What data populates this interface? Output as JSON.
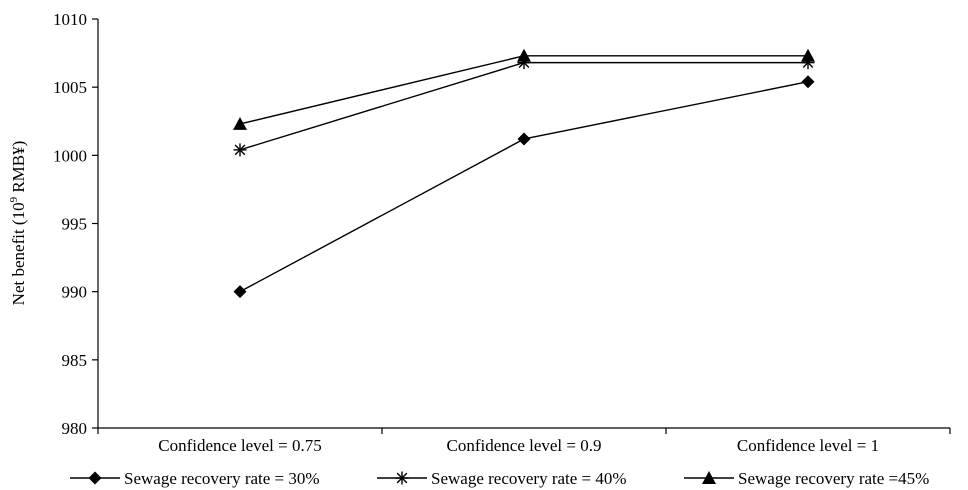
{
  "chart_data": {
    "type": "line",
    "ylabel": "Net benefit (10",
    "ylabel_sup": "9",
    "ylabel_tail": " RMB¥)",
    "ylim": [
      980,
      1010
    ],
    "yticks": [
      980,
      985,
      990,
      995,
      1000,
      1005,
      1010
    ],
    "categories": [
      "Confidence level = 0.75",
      "Confidence level = 0.9",
      "Confidence level = 1"
    ],
    "series": [
      {
        "name": "Sewage recovery rate = 30%",
        "marker": "diamond",
        "values": [
          990.0,
          1001.2,
          1005.4
        ]
      },
      {
        "name": "Sewage recovery rate = 40%",
        "marker": "star",
        "values": [
          1000.4,
          1006.8,
          1006.8
        ]
      },
      {
        "name": "Sewage recovery rate =45%",
        "marker": "triangle",
        "values": [
          1002.3,
          1007.3,
          1007.3
        ]
      }
    ],
    "grid": false,
    "legend_position": "bottom",
    "line_color": "#000000"
  }
}
